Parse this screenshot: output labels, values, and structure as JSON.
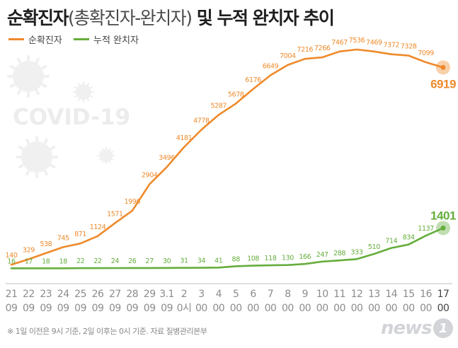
{
  "title": {
    "main": "순확진자",
    "paren": "(총확진자-완치자)",
    "rest": " 및 누적 완치자 추이"
  },
  "watermark": "COVID-19",
  "footnote": "※ 1일 이전은 9시 기준, 2일 이후는 0시 기준. 자료 질병관리본부",
  "source_logo": {
    "text": "news",
    "badge": "1"
  },
  "colors": {
    "active": "#ee8a2b",
    "recovered": "#65ad3c",
    "axis_label": "#8c8c8c",
    "last_label": "#444444",
    "watermark": "#ececec"
  },
  "chart_data": {
    "type": "line",
    "x": [
      [
        "21",
        "09"
      ],
      [
        "22",
        "09"
      ],
      [
        "23",
        "09"
      ],
      [
        "24",
        "09"
      ],
      [
        "25",
        "09"
      ],
      [
        "26",
        "09"
      ],
      [
        "27",
        "09"
      ],
      [
        "28",
        "09"
      ],
      [
        "29",
        "09"
      ],
      [
        "3.1",
        "09"
      ],
      [
        "2",
        "0시"
      ],
      [
        "3",
        "00"
      ],
      [
        "4",
        "00"
      ],
      [
        "5",
        "00"
      ],
      [
        "6",
        "00"
      ],
      [
        "7",
        "00"
      ],
      [
        "8",
        "00"
      ],
      [
        "9",
        "00"
      ],
      [
        "10",
        "00"
      ],
      [
        "11",
        "00"
      ],
      [
        "12",
        "00"
      ],
      [
        "13",
        "00"
      ],
      [
        "14",
        "00"
      ],
      [
        "15",
        "00"
      ],
      [
        "16",
        "00"
      ],
      [
        "17",
        "00"
      ]
    ],
    "ylim": [
      0,
      7536
    ],
    "series": [
      {
        "name": "순확진자",
        "key": "active",
        "values": [
          140,
          329,
          538,
          745,
          871,
          1124,
          1571,
          1996,
          2904,
          3496,
          4181,
          4778,
          5287,
          5678,
          6176,
          6649,
          7004,
          7216,
          7266,
          7467,
          7536,
          7469,
          7372,
          7328,
          7099,
          6919
        ]
      },
      {
        "name": "누적 완치자",
        "key": "recovered",
        "values": [
          16,
          17,
          18,
          18,
          22,
          22,
          24,
          26,
          27,
          30,
          31,
          34,
          41,
          88,
          108,
          118,
          130,
          166,
          247,
          288,
          333,
          510,
          714,
          834,
          1137,
          1401
        ]
      }
    ],
    "grid": false,
    "legend_position": "top-left"
  }
}
